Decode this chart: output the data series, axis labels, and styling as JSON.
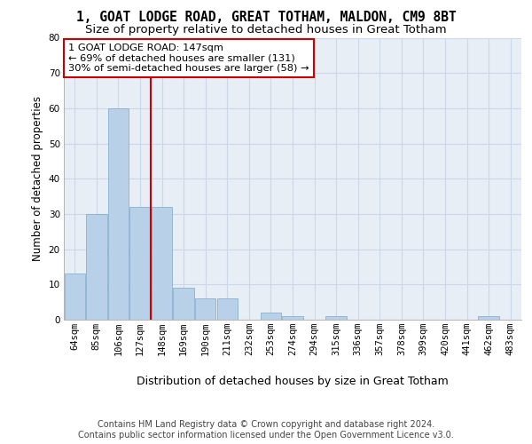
{
  "title": "1, GOAT LODGE ROAD, GREAT TOTHAM, MALDON, CM9 8BT",
  "subtitle": "Size of property relative to detached houses in Great Totham",
  "xlabel": "Distribution of detached houses by size in Great Totham",
  "ylabel": "Number of detached properties",
  "categories": [
    "64sqm",
    "85sqm",
    "106sqm",
    "127sqm",
    "148sqm",
    "169sqm",
    "190sqm",
    "211sqm",
    "232sqm",
    "253sqm",
    "274sqm",
    "294sqm",
    "315sqm",
    "336sqm",
    "357sqm",
    "378sqm",
    "399sqm",
    "420sqm",
    "441sqm",
    "462sqm",
    "483sqm"
  ],
  "values": [
    13,
    30,
    60,
    32,
    32,
    9,
    6,
    6,
    0,
    2,
    1,
    0,
    1,
    0,
    0,
    0,
    0,
    0,
    0,
    1,
    0
  ],
  "bar_color": "#b8d0e8",
  "bar_edge_color": "#7aaac8",
  "vline_color": "#cc0000",
  "vline_bar_index": 4,
  "annotation_line1": "1 GOAT LODGE ROAD: 147sqm",
  "annotation_line2": "← 69% of detached houses are smaller (131)",
  "annotation_line3": "30% of semi-detached houses are larger (58) →",
  "annotation_box_edgecolor": "#cc0000",
  "ylim": [
    0,
    80
  ],
  "yticks": [
    0,
    10,
    20,
    30,
    40,
    50,
    60,
    70,
    80
  ],
  "grid_color": "#ccd8e8",
  "bg_color": "#e8eef6",
  "footer_line1": "Contains HM Land Registry data © Crown copyright and database right 2024.",
  "footer_line2": "Contains public sector information licensed under the Open Government Licence v3.0.",
  "title_fontsize": 10.5,
  "subtitle_fontsize": 9.5,
  "annotation_fontsize": 8.2,
  "tick_fontsize": 7.5,
  "xlabel_fontsize": 9,
  "ylabel_fontsize": 8.5,
  "footer_fontsize": 7
}
